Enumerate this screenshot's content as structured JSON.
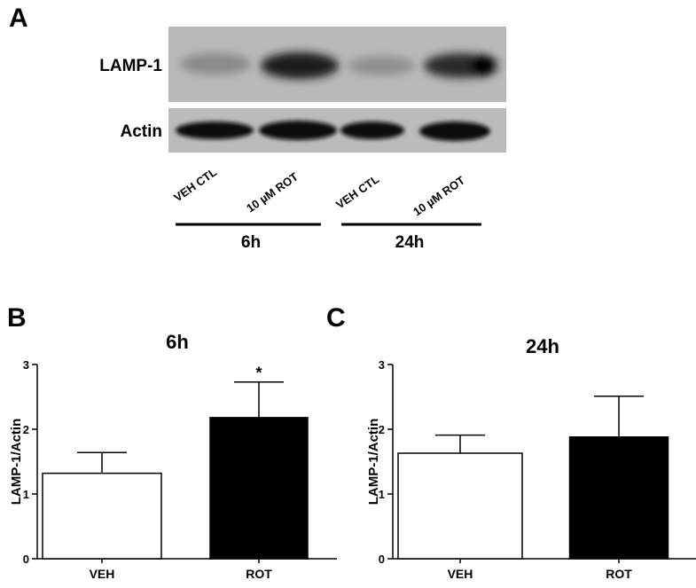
{
  "panel_labels": [
    "A",
    "B",
    "C"
  ],
  "blot": {
    "rows": [
      "LAMP-1",
      "Actin"
    ],
    "lanes": [
      "VEH CTL",
      "10 µM ROT",
      "VEH CTL",
      "10 µM ROT"
    ],
    "groups": [
      "6h",
      "24h"
    ]
  },
  "chart_data": [
    {
      "type": "bar",
      "title": "6h",
      "y_label": "LAMP-1/Actin",
      "categories": [
        "VEH",
        "ROT"
      ],
      "values": [
        1.32,
        2.18
      ],
      "errors": [
        0.32,
        0.55
      ],
      "colors": [
        "#ffffff",
        "#000000"
      ],
      "annotation": "*",
      "ylim": [
        0,
        3
      ],
      "yticks": [
        0,
        1,
        2,
        3
      ]
    },
    {
      "type": "bar",
      "title": "24h",
      "y_label": "LAMP-1/Actin",
      "categories": [
        "VEH",
        "ROT"
      ],
      "values": [
        1.63,
        1.88
      ],
      "errors": [
        0.28,
        0.63
      ],
      "colors": [
        "#ffffff",
        "#000000"
      ],
      "ylim": [
        0,
        3
      ],
      "yticks": [
        0,
        1,
        2,
        3
      ]
    }
  ]
}
